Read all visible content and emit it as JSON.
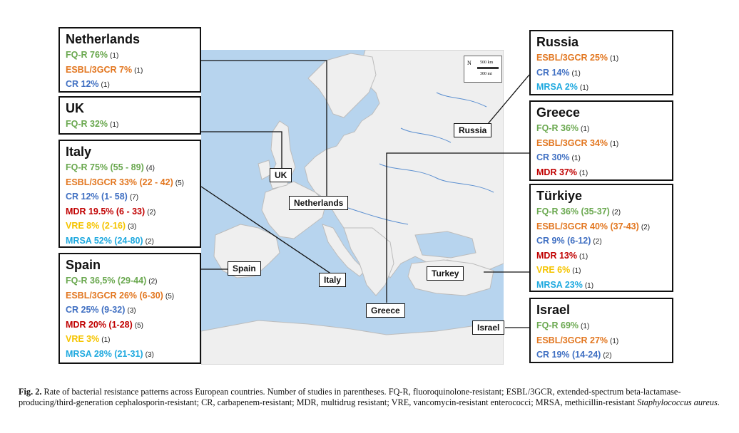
{
  "header_fragment": "",
  "colors": {
    "fq": "#6aa84f",
    "esbl": "#e2761f",
    "cr": "#3f6fc2",
    "mdr": "#c00000",
    "vre": "#f5c400",
    "mrsa": "#1fa9df"
  },
  "boxes": {
    "netherlands": {
      "title": "Netherlands",
      "rows": [
        {
          "text": "FQ-R 76%",
          "n": "(1)"
        },
        {
          "text": "ESBL/3GCR 7%",
          "n": "(1)"
        },
        {
          "text": "CR 12%",
          "n": "(1)"
        }
      ]
    },
    "uk": {
      "title": "UK",
      "rows": [
        {
          "text": "FQ-R 32%",
          "n": "(1)"
        }
      ]
    },
    "italy": {
      "title": "Italy",
      "rows": [
        {
          "text": "FQ-R 75% (55 - 89)",
          "n": "(4)"
        },
        {
          "text": "ESBL/3GCR 33% (22 - 42)",
          "n": "(5)"
        },
        {
          "text": "CR 12% (1- 58)",
          "n": "(7)"
        },
        {
          "text": "MDR 19.5% (6 - 33)",
          "n": "(2)"
        },
        {
          "text": "VRE 8% (2-16)",
          "n": "(3)"
        },
        {
          "text": "MRSA 52% (24-80)",
          "n": "(2)"
        }
      ]
    },
    "spain": {
      "title": "Spain",
      "rows": [
        {
          "text": "FQ-R 36,5% (29-44)",
          "n": "(2)"
        },
        {
          "text": "ESBL/3GCR 26% (6-30)",
          "n": "(5)"
        },
        {
          "text": "CR 25% (9-32)",
          "n": "(3)"
        },
        {
          "text": "MDR 20% (1-28)",
          "n": "(5)"
        },
        {
          "text": "VRE 3%",
          "n": "(1)"
        },
        {
          "text": "MRSA 28% (21-31)",
          "n": "(3)"
        }
      ]
    },
    "russia": {
      "title": "Russia",
      "rows": [
        {
          "text": "ESBL/3GCR 25%",
          "n": "(1)"
        },
        {
          "text": "CR 14%",
          "n": "(1)"
        },
        {
          "text": "MRSA 2%",
          "n": "(1)"
        }
      ]
    },
    "greece": {
      "title": "Greece",
      "rows": [
        {
          "text": "FQ-R  36%",
          "n": "(1)"
        },
        {
          "text": "ESBL/3GCR 34%",
          "n": "(1)"
        },
        {
          "text": "CR 30%",
          "n": "(1)"
        },
        {
          "text": "MDR 37%",
          "n": "(1)"
        }
      ]
    },
    "turkiye": {
      "title": "Türkiye",
      "rows": [
        {
          "text": "FQ-R 36% (35-37)",
          "n": "(2)"
        },
        {
          "text": "ESBL/3GCR 40% (37-43)",
          "n": "(2)"
        },
        {
          "text": "CR 9% (6-12)",
          "n": "(2)"
        },
        {
          "text": "MDR 13%",
          "n": "(1)"
        },
        {
          "text": "VRE 6%",
          "n": "(1)"
        },
        {
          "text": "MRSA 23%",
          "n": "(1)"
        }
      ]
    },
    "israel": {
      "title": "Israel",
      "rows": [
        {
          "text": "FQ-R 69%",
          "n": "(1)"
        },
        {
          "text": "ESBL/3GCR 27%",
          "n": "(1)"
        },
        {
          "text": "CR 19% (14-24)",
          "n": "(2)"
        }
      ]
    }
  },
  "map_labels": {
    "uk": "UK",
    "netherlands": "Netherlands",
    "spain": "Spain",
    "italy": "Italy",
    "greece": "Greece",
    "turkey": "Turkey",
    "israel": "Israel",
    "russia": "Russia"
  },
  "scale_bar": {
    "north": "N",
    "km": "500 km",
    "mi": "300 mi"
  },
  "caption": {
    "fig": "Fig. 2.",
    "text": " Rate of bacterial resistance patterns across European countries. Number of studies in parentheses. FQ-R, fluoroquinolone-resistant; ESBL/3GCR, extended-spectrum beta-lactamase-producing/third-generation cephalosporin-resistant; CR, carbapenem-resistant; MDR, multidrug resistant; VRE, vancomycin-resistant enterococci; MRSA, methicillin-resistant ",
    "italic": "Staphylococcus aureus",
    "end": "."
  }
}
